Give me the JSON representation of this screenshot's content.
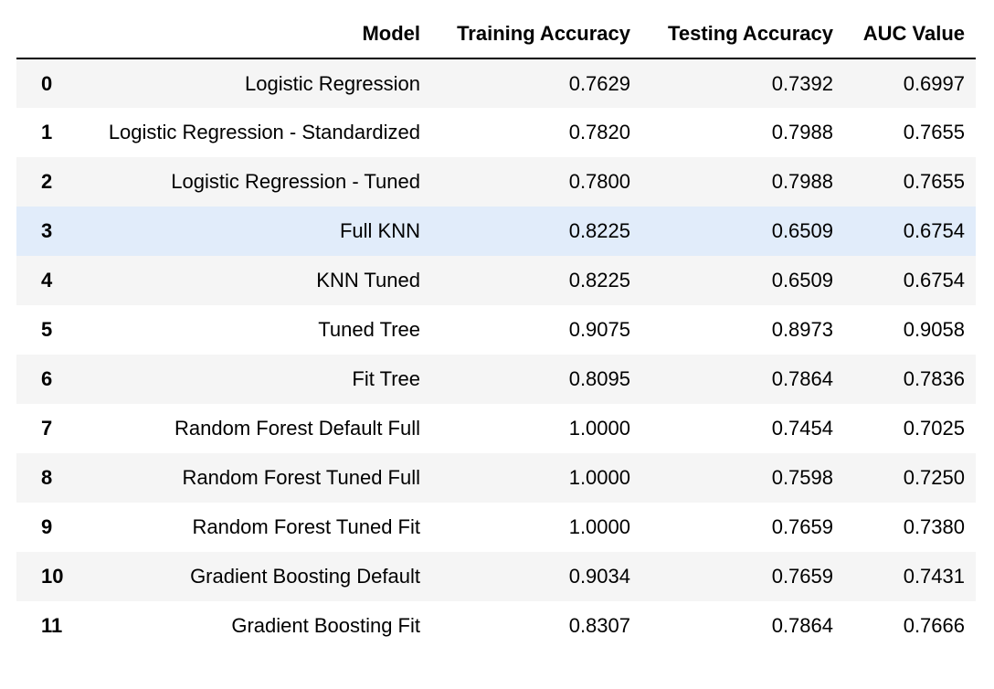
{
  "table": {
    "columns": [
      "",
      "Model",
      "Training Accuracy",
      "Testing Accuracy",
      "AUC Value"
    ],
    "rows": [
      {
        "index": "0",
        "model": "Logistic Regression",
        "training_accuracy": "0.7629",
        "testing_accuracy": "0.7392",
        "auc_value": "0.6997"
      },
      {
        "index": "1",
        "model": "Logistic Regression - Standardized",
        "training_accuracy": "0.7820",
        "testing_accuracy": "0.7988",
        "auc_value": "0.7655"
      },
      {
        "index": "2",
        "model": "Logistic Regression - Tuned",
        "training_accuracy": "0.7800",
        "testing_accuracy": "0.7988",
        "auc_value": "0.7655"
      },
      {
        "index": "3",
        "model": "Full KNN",
        "training_accuracy": "0.8225",
        "testing_accuracy": "0.6509",
        "auc_value": "0.6754"
      },
      {
        "index": "4",
        "model": "KNN Tuned",
        "training_accuracy": "0.8225",
        "testing_accuracy": "0.6509",
        "auc_value": "0.6754"
      },
      {
        "index": "5",
        "model": "Tuned Tree",
        "training_accuracy": "0.9075",
        "testing_accuracy": "0.8973",
        "auc_value": "0.9058"
      },
      {
        "index": "6",
        "model": "Fit Tree",
        "training_accuracy": "0.8095",
        "testing_accuracy": "0.7864",
        "auc_value": "0.7836"
      },
      {
        "index": "7",
        "model": "Random Forest Default Full",
        "training_accuracy": "1.0000",
        "testing_accuracy": "0.7454",
        "auc_value": "0.7025"
      },
      {
        "index": "8",
        "model": "Random Forest Tuned Full",
        "training_accuracy": "1.0000",
        "testing_accuracy": "0.7598",
        "auc_value": "0.7250"
      },
      {
        "index": "9",
        "model": "Random Forest Tuned Fit",
        "training_accuracy": "1.0000",
        "testing_accuracy": "0.7659",
        "auc_value": "0.7380"
      },
      {
        "index": "10",
        "model": "Gradient Boosting Default",
        "training_accuracy": "0.9034",
        "testing_accuracy": "0.7659",
        "auc_value": "0.7431"
      },
      {
        "index": "11",
        "model": "Gradient Boosting Fit",
        "training_accuracy": "0.8307",
        "testing_accuracy": "0.7864",
        "auc_value": "0.7666"
      }
    ],
    "hovered_row_index": "3"
  },
  "colors": {
    "odd_row_bg": "#f5f5f5",
    "even_row_bg": "#ffffff",
    "hover_row_bg": "#e1ecfa",
    "header_rule": "#000000"
  }
}
